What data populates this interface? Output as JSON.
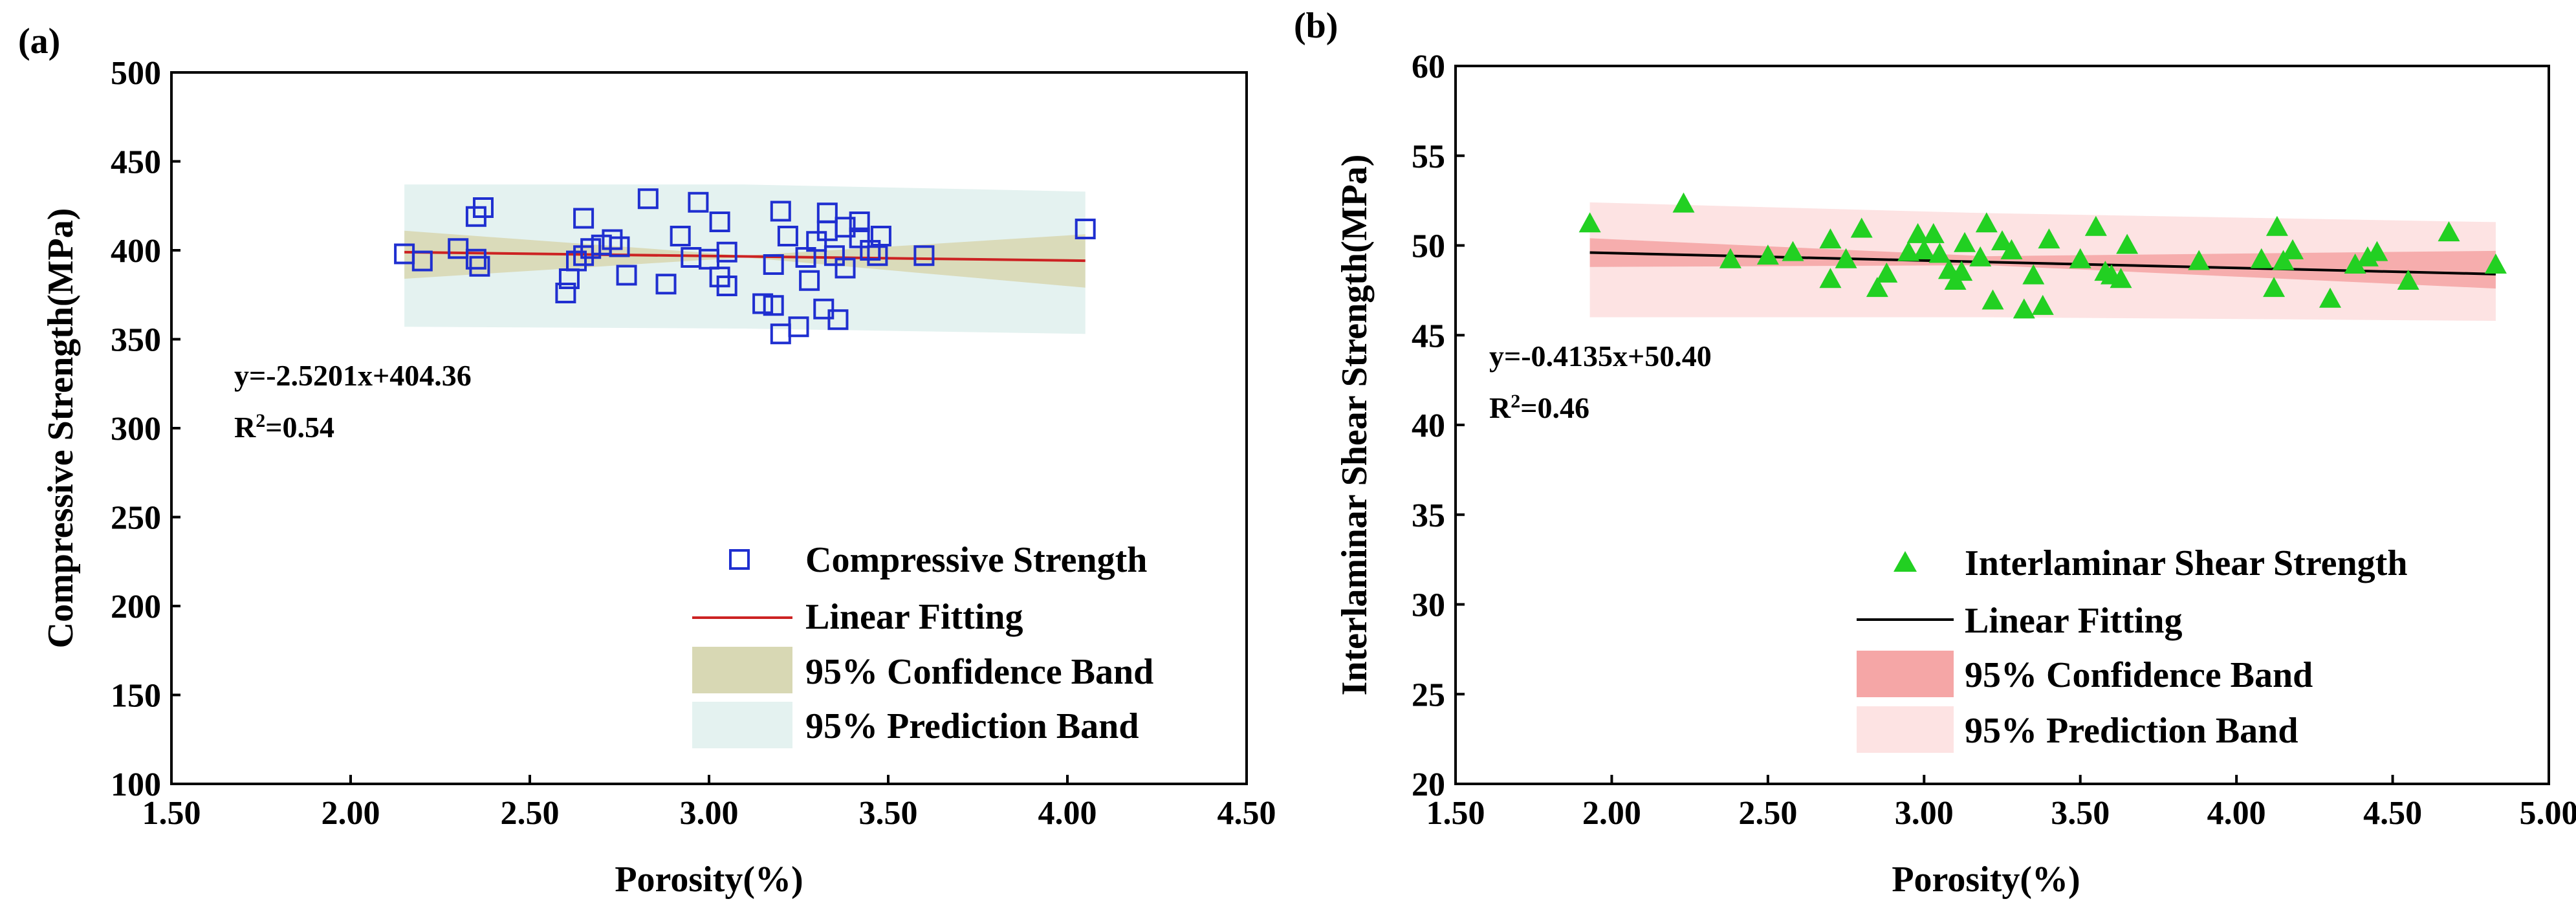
{
  "chart_data": [
    {
      "type": "scatter",
      "panel_label": "(a)",
      "xlabel": "Porosity(%)",
      "ylabel": "Compressive Strength(MPa)",
      "xlim": [
        1.5,
        4.5
      ],
      "ylim": [
        100,
        500
      ],
      "xticks": [
        1.5,
        2.0,
        2.5,
        3.0,
        3.5,
        4.0,
        4.5
      ],
      "yticks": [
        100,
        150,
        200,
        250,
        300,
        350,
        400,
        450,
        500
      ],
      "xtick_labels": [
        "1.50",
        "2.00",
        "2.50",
        "3.00",
        "3.50",
        "4.00",
        "4.50"
      ],
      "ytick_labels": [
        "100",
        "150",
        "200",
        "250",
        "300",
        "350",
        "400",
        "450",
        "500"
      ],
      "equation": "y=-2.5201x+404.36",
      "r2_label": "R",
      "r2_sup": "2",
      "r2_value": "=0.54",
      "fit": {
        "slope": -2.5201,
        "intercept": 404.36,
        "x_range": [
          2.15,
          4.05
        ]
      },
      "confidence_band": {
        "x": [
          2.15,
          3.1,
          4.05
        ],
        "lower": [
          384,
          396,
          379
        ],
        "upper": [
          411,
          397,
          409
        ]
      },
      "prediction_band": {
        "x": [
          2.15,
          3.1,
          4.05
        ],
        "lower": [
          357,
          356,
          353
        ],
        "upper": [
          437,
          437,
          433
        ]
      },
      "series": [
        {
          "name": "Compressive Strength",
          "marker": "square-open",
          "color": "#1f2fd0",
          "points": [
            [
              2.15,
              398
            ],
            [
              2.2,
              394
            ],
            [
              2.3,
              401
            ],
            [
              2.35,
              419
            ],
            [
              2.37,
              424
            ],
            [
              2.35,
              395
            ],
            [
              2.36,
              391
            ],
            [
              2.6,
              376
            ],
            [
              2.61,
              384
            ],
            [
              2.63,
              394
            ],
            [
              2.65,
              418
            ],
            [
              2.65,
              397
            ],
            [
              2.67,
              401
            ],
            [
              2.7,
              403
            ],
            [
              2.73,
              406
            ],
            [
              2.75,
              402
            ],
            [
              2.77,
              386
            ],
            [
              2.83,
              429
            ],
            [
              2.88,
              381
            ],
            [
              2.92,
              408
            ],
            [
              2.95,
              396
            ],
            [
              2.97,
              427
            ],
            [
              3.0,
              395
            ],
            [
              3.03,
              416
            ],
            [
              3.03,
              385
            ],
            [
              3.05,
              380
            ],
            [
              3.05,
              399
            ],
            [
              3.15,
              370
            ],
            [
              3.18,
              392
            ],
            [
              3.18,
              369
            ],
            [
              3.2,
              422
            ],
            [
              3.2,
              353
            ],
            [
              3.22,
              408
            ],
            [
              3.25,
              357
            ],
            [
              3.27,
              396
            ],
            [
              3.28,
              383
            ],
            [
              3.3,
              405
            ],
            [
              3.32,
              367
            ],
            [
              3.33,
              421
            ],
            [
              3.33,
              411
            ],
            [
              3.35,
              397
            ],
            [
              3.36,
              361
            ],
            [
              3.38,
              390
            ],
            [
              3.38,
              413
            ],
            [
              3.42,
              416
            ],
            [
              3.42,
              407
            ],
            [
              3.45,
              400
            ],
            [
              3.47,
              397
            ],
            [
              3.48,
              408
            ],
            [
              3.6,
              397
            ],
            [
              4.05,
              412
            ]
          ]
        }
      ],
      "legend": [
        "Compressive Strength",
        "Linear Fitting",
        "95% Confidence Band",
        "95% Prediction Band"
      ],
      "colors": {
        "fit_line": "#cc2222",
        "confidence": "#d8d8b4",
        "prediction": "#e4f2f0",
        "marker": "#1f2fd0"
      }
    },
    {
      "type": "scatter",
      "panel_label": "(b)",
      "xlabel": "Porosity(%)",
      "ylabel": "Interlaminar Shear Strength(MPa)",
      "xlim": [
        1.5,
        5.0
      ],
      "ylim": [
        20,
        60
      ],
      "xticks": [
        1.5,
        2.0,
        2.5,
        3.0,
        3.5,
        4.0,
        4.5,
        5.0
      ],
      "yticks": [
        20,
        25,
        30,
        35,
        40,
        45,
        50,
        55,
        60
      ],
      "xtick_labels": [
        "1.50",
        "2.00",
        "2.50",
        "3.00",
        "3.50",
        "4.00",
        "4.50",
        "5.00"
      ],
      "ytick_labels": [
        "20",
        "25",
        "30",
        "35",
        "40",
        "45",
        "50",
        "55",
        "60"
      ],
      "equation": "y=-0.4135x+50.40",
      "r2_label": "R",
      "r2_sup": "2",
      "r2_value": "=0.46",
      "fit": {
        "slope": -0.4135,
        "intercept": 50.4,
        "x_range": [
          1.93,
          4.83
        ]
      },
      "confidence_band": {
        "x": [
          1.93,
          3.2,
          4.83
        ],
        "lower": [
          48.8,
          48.9,
          47.6
        ],
        "upper": [
          50.4,
          49.4,
          49.7
        ]
      },
      "prediction_band": {
        "x": [
          1.93,
          3.2,
          4.83
        ],
        "lower": [
          46.0,
          46.0,
          45.8
        ],
        "upper": [
          52.4,
          51.8,
          51.3
        ]
      },
      "series": [
        {
          "name": "Interlaminar Shear Strength",
          "marker": "triangle-filled",
          "color": "#22d022",
          "points": [
            [
              1.93,
              51.2
            ],
            [
              2.23,
              52.3
            ],
            [
              2.38,
              49.2
            ],
            [
              2.5,
              49.4
            ],
            [
              2.58,
              49.6
            ],
            [
              2.7,
              48.1
            ],
            [
              2.7,
              50.3
            ],
            [
              2.75,
              49.2
            ],
            [
              2.8,
              50.9
            ],
            [
              2.85,
              47.6
            ],
            [
              2.88,
              48.4
            ],
            [
              2.95,
              49.6
            ],
            [
              2.98,
              50.6
            ],
            [
              3.0,
              49.7
            ],
            [
              3.03,
              50.6
            ],
            [
              3.05,
              49.5
            ],
            [
              3.08,
              48.6
            ],
            [
              3.1,
              48.0
            ],
            [
              3.12,
              48.5
            ],
            [
              3.13,
              50.1
            ],
            [
              3.18,
              49.3
            ],
            [
              3.2,
              51.2
            ],
            [
              3.22,
              46.9
            ],
            [
              3.25,
              50.2
            ],
            [
              3.28,
              49.7
            ],
            [
              3.32,
              46.4
            ],
            [
              3.35,
              48.3
            ],
            [
              3.38,
              46.6
            ],
            [
              3.4,
              50.3
            ],
            [
              3.5,
              49.2
            ],
            [
              3.55,
              51.0
            ],
            [
              3.58,
              48.5
            ],
            [
              3.6,
              48.3
            ],
            [
              3.63,
              48.1
            ],
            [
              3.65,
              50.0
            ],
            [
              3.88,
              49.1
            ],
            [
              4.08,
              49.2
            ],
            [
              4.12,
              47.6
            ],
            [
              4.13,
              51.0
            ],
            [
              4.15,
              49.1
            ],
            [
              4.18,
              49.7
            ],
            [
              4.3,
              47.0
            ],
            [
              4.38,
              48.9
            ],
            [
              4.42,
              49.3
            ],
            [
              4.45,
              49.6
            ],
            [
              4.55,
              48.0
            ],
            [
              4.68,
              50.7
            ],
            [
              4.83,
              48.9
            ]
          ]
        }
      ],
      "legend": [
        "Interlaminar Shear Strength",
        "Linear Fitting",
        "95% Confidence Band",
        "95% Prediction Band"
      ],
      "colors": {
        "fit_line": "#000000",
        "confidence": "#f5a6a6",
        "prediction": "#fde3e3",
        "marker": "#22d022"
      }
    }
  ]
}
